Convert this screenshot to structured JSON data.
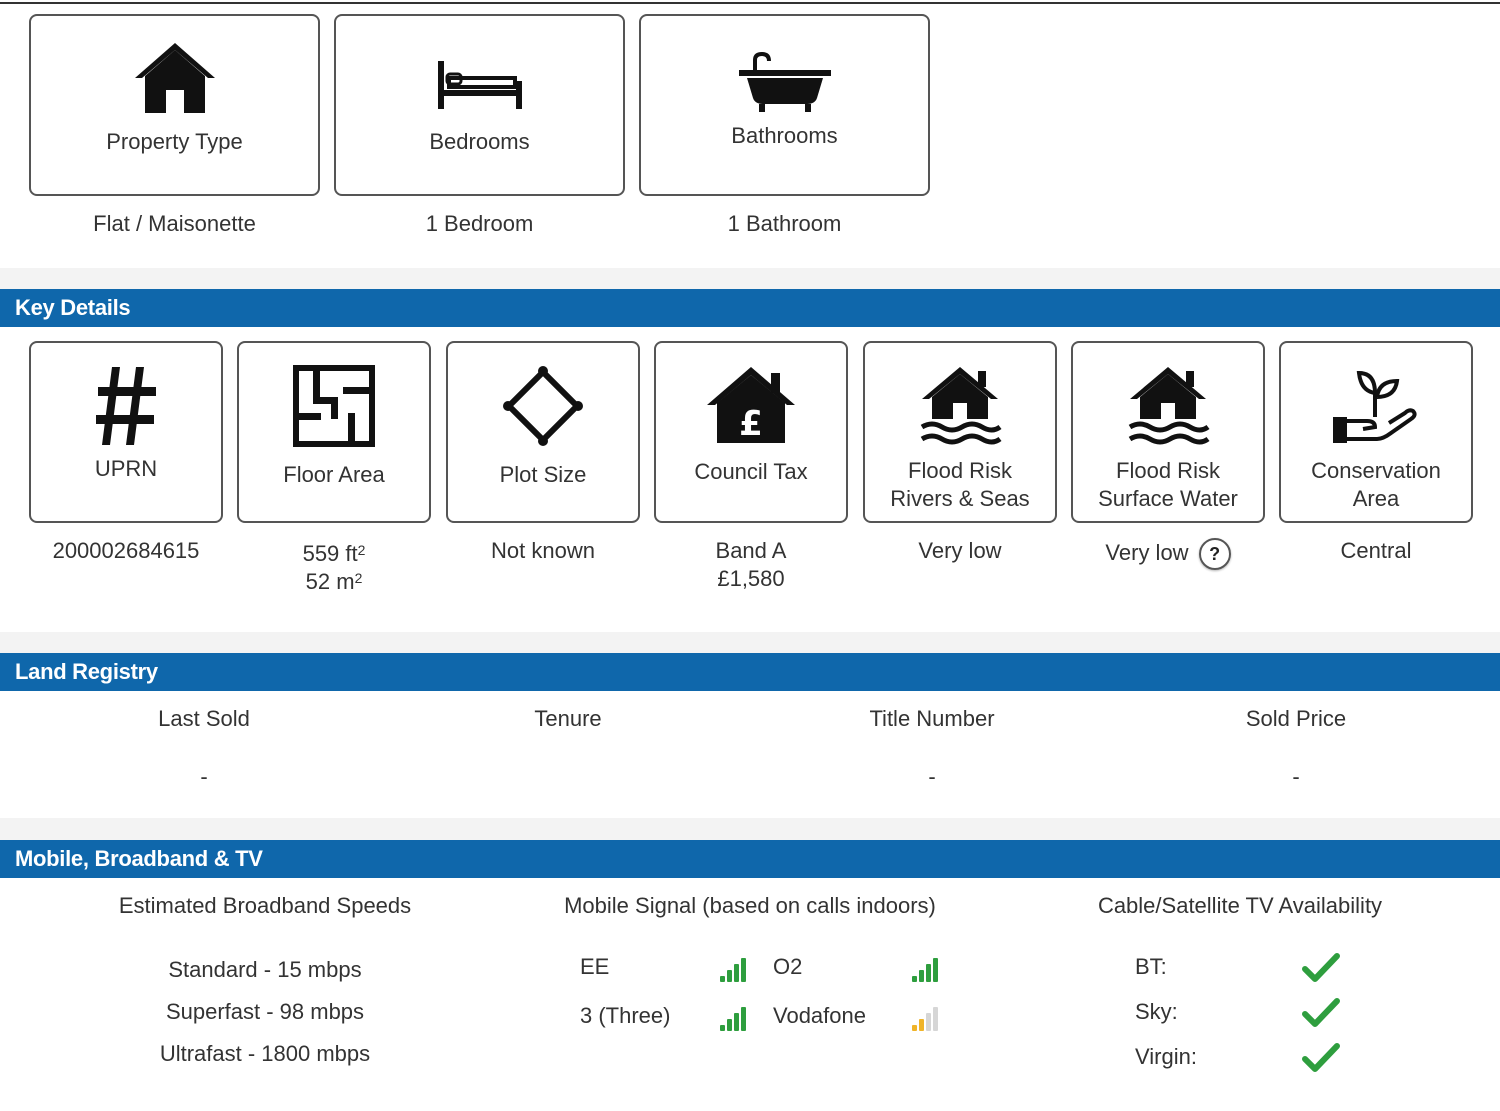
{
  "summary": [
    {
      "label": "Property Type",
      "value": "Flat / Maisonette",
      "icon": "house-icon"
    },
    {
      "label": "Bedrooms",
      "value": "1 Bedroom",
      "icon": "bed-icon"
    },
    {
      "label": "Bathrooms",
      "value": "1 Bathroom",
      "icon": "bathtub-icon"
    }
  ],
  "key_details": {
    "title": "Key Details",
    "items": [
      {
        "label": "UPRN",
        "value": "200002684615",
        "icon": "hash-icon"
      },
      {
        "label": "Floor Area",
        "value_line1": "559 ft",
        "value_line2": "52 m",
        "sup": "2",
        "icon": "floor-plan-icon"
      },
      {
        "label": "Plot Size",
        "value": "Not known",
        "icon": "plot-size-icon"
      },
      {
        "label": "Council Tax",
        "value_line1": "Band A",
        "value_line2": "£1,580",
        "icon": "council-tax-house-icon"
      },
      {
        "label_line1": "Flood Risk",
        "label_line2": "Rivers & Seas",
        "value": "Very low",
        "icon": "flood-house-icon"
      },
      {
        "label_line1": "Flood Risk",
        "label_line2": "Surface Water",
        "value": "Very low",
        "help": "?",
        "icon": "flood-house-icon"
      },
      {
        "label_line1": "Conservation",
        "label_line2": "Area",
        "value": "Central",
        "icon": "plant-hand-icon"
      }
    ]
  },
  "land_registry": {
    "title": "Land Registry",
    "columns": [
      {
        "label": "Last Sold",
        "value": "-"
      },
      {
        "label": "Tenure",
        "value": ""
      },
      {
        "label": "Title Number",
        "value": "-"
      },
      {
        "label": "Sold Price",
        "value": "-"
      }
    ]
  },
  "mobile": {
    "title": "Mobile, Broadband & TV",
    "broadband": {
      "heading": "Estimated Broadband Speeds",
      "speeds": [
        "Standard - 15 mbps",
        "Superfast - 98 mbps",
        "Ultrafast - 1800 mbps"
      ]
    },
    "signal": {
      "heading": "Mobile Signal (based on calls indoors)",
      "networks": [
        {
          "name": "EE",
          "bars": 4,
          "color": "#2e9e3e"
        },
        {
          "name": "O2",
          "bars": 4,
          "color": "#2e9e3e"
        },
        {
          "name": "3 (Three)",
          "bars": 4,
          "color": "#2e9e3e"
        },
        {
          "name": "Vodafone",
          "bars": 2,
          "color": "#f0b429"
        }
      ]
    },
    "tv": {
      "heading": "Cable/Satellite TV Availability",
      "providers": [
        {
          "name": "BT:",
          "available": true
        },
        {
          "name": "Sky:",
          "available": true
        },
        {
          "name": "Virgin:",
          "available": true
        }
      ],
      "check_color": "#2e9e3e"
    }
  },
  "colors": {
    "band": "#0f67ab",
    "gap": "#f3f3f3"
  }
}
